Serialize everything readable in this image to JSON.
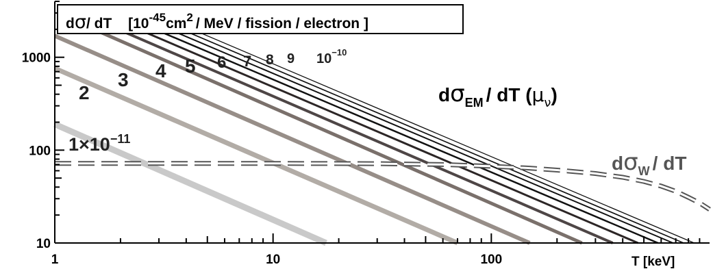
{
  "chart_data": {
    "type": "line",
    "title_parts": {
      "d": "d",
      "sigma": "σ",
      "rest": "/ dT",
      "units_pre": "[10",
      "units_exp": "-45",
      "units_mid": "cm",
      "units_exp2": "2",
      "units_post": "/ MeV / fission / electron ]"
    },
    "xlabel": "T  [keV]",
    "x_scale": "log",
    "y_scale": "log",
    "xlim": [
      1,
      1000
    ],
    "ylim": [
      10,
      4000
    ],
    "x_ticks": [
      {
        "value": 1,
        "label": "1"
      },
      {
        "value": 10,
        "label": "10"
      },
      {
        "value": 100,
        "label": "100"
      }
    ],
    "y_ticks": [
      {
        "value": 10,
        "label": "10"
      },
      {
        "value": 100,
        "label": "100"
      },
      {
        "value": 1000,
        "label": "1000"
      }
    ],
    "em_label": {
      "prefix": "d",
      "sigma": "σ",
      "sub": "EM",
      "suffix": "/ dT (",
      "mu": "μ",
      "nu": "ν",
      "close": ")"
    },
    "weak_label": {
      "prefix": "d",
      "sigma": "σ",
      "sub": "W",
      "suffix": "/ dT"
    },
    "series": [
      {
        "label": "1×10",
        "label_exp": "−11",
        "color": "#c9c9c9",
        "width": 9,
        "x": [
          1,
          17.5
        ],
        "y": [
          190,
          10
        ]
      },
      {
        "label": "2",
        "color": "#b2aca6",
        "width": 7,
        "x": [
          1,
          70
        ],
        "y": [
          760,
          10
        ]
      },
      {
        "label": "3",
        "color": "#978e88",
        "width": 6,
        "x": [
          1,
          150
        ],
        "y": [
          1700,
          10
        ]
      },
      {
        "label": "4",
        "color": "#7a706b",
        "width": 5,
        "x": [
          1.32,
          260
        ],
        "y": [
          2300,
          10
        ]
      },
      {
        "label": "5",
        "color": "#4e4646",
        "width": 4,
        "x": [
          1.7,
          360
        ],
        "y": [
          2300,
          10
        ]
      },
      {
        "label": "6",
        "color": "#2c2626",
        "width": 3,
        "x": [
          2.1,
          470
        ],
        "y": [
          2300,
          10
        ]
      },
      {
        "label": "7",
        "color": "#111111",
        "width": 2.5,
        "x": [
          2.5,
          580
        ],
        "y": [
          2300,
          10
        ]
      },
      {
        "label": "8",
        "color": "#111111",
        "width": 2,
        "x": [
          2.9,
          680
        ],
        "y": [
          2300,
          10
        ]
      },
      {
        "label": "9",
        "color": "#111111",
        "width": 1.7,
        "x": [
          3.3,
          760
        ],
        "y": [
          2300,
          10
        ]
      },
      {
        "label": "10",
        "label_exp": "−10",
        "color": "#111111",
        "width": 1.3,
        "x": [
          3.7,
          850
        ],
        "y": [
          2300,
          10
        ]
      }
    ],
    "weak_curve": {
      "style": "dashed",
      "x": [
        1,
        10,
        30,
        60,
        100,
        150,
        200,
        300,
        400,
        500,
        600,
        700,
        800,
        900,
        1000
      ],
      "y": [
        72,
        72,
        71.5,
        70,
        67,
        64,
        61,
        56,
        51,
        46,
        41,
        36,
        31,
        27,
        23
      ]
    }
  }
}
